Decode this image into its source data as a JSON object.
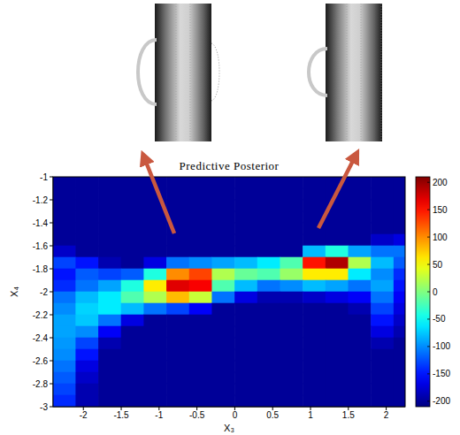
{
  "chart_data": {
    "type": "heatmap",
    "title": "Predictive Posterior",
    "xlabel": "X₃",
    "ylabel": "X₄",
    "xlim": [
      -2.4,
      2.25
    ],
    "xticks": [
      -2,
      -1.5,
      -1,
      -0.5,
      0,
      0.5,
      1,
      1.5,
      2
    ],
    "ylim": [
      -3,
      -1
    ],
    "yticks": [
      -3,
      -2.8,
      -2.6,
      -2.4,
      -2.2,
      -2,
      -1.8,
      -1.6,
      -1.4,
      -1.2,
      -1
    ],
    "cells": {
      "x": [
        -2.25,
        -1.95,
        -1.65,
        -1.35,
        -1.05,
        -0.75,
        -0.45,
        -0.15,
        0.15,
        0.45,
        0.75,
        1.05,
        1.35,
        1.65,
        1.95,
        2.25
      ],
      "y": [
        -1.05,
        -1.15,
        -1.25,
        -1.35,
        -1.45,
        -1.55,
        -1.65,
        -1.75,
        -1.85,
        -1.95,
        -2.05,
        -2.15,
        -2.25,
        -2.35,
        -2.45,
        -2.55,
        -2.65,
        -2.75,
        -2.85,
        -2.95
      ],
      "values": [
        [
          -200,
          -200,
          -200,
          -200,
          -200,
          -200,
          -200,
          -200,
          -200,
          -200,
          -200,
          -200,
          -200,
          -200,
          -200,
          -200
        ],
        [
          -200,
          -200,
          -200,
          -200,
          -200,
          -200,
          -200,
          -200,
          -200,
          -200,
          -200,
          -200,
          -200,
          -200,
          -200,
          -200
        ],
        [
          -200,
          -200,
          -200,
          -200,
          -200,
          -200,
          -200,
          -200,
          -200,
          -200,
          -200,
          -200,
          -200,
          -200,
          -200,
          -200
        ],
        [
          -200,
          -200,
          -200,
          -200,
          -200,
          -200,
          -200,
          -200,
          -200,
          -200,
          -200,
          -200,
          -200,
          -200,
          -200,
          -200
        ],
        [
          -200,
          -200,
          -200,
          -200,
          -200,
          -200,
          -200,
          -200,
          -200,
          -200,
          -200,
          -200,
          -200,
          -200,
          -200,
          -200
        ],
        [
          -200,
          -200,
          -200,
          -200,
          -200,
          -200,
          -200,
          -200,
          -200,
          -200,
          -200,
          -200,
          -200,
          -200,
          -180,
          -170
        ],
        [
          -180,
          -200,
          -200,
          -200,
          -200,
          -200,
          -200,
          -200,
          -200,
          -200,
          -200,
          -80,
          -40,
          -90,
          -110,
          -110
        ],
        [
          -130,
          -150,
          -190,
          -200,
          -170,
          -110,
          -100,
          -90,
          -80,
          -60,
          -20,
          150,
          190,
          20,
          -80,
          -120
        ],
        [
          -150,
          -120,
          -130,
          -120,
          -40,
          100,
          130,
          20,
          -10,
          -20,
          10,
          60,
          60,
          -60,
          -100,
          -140
        ],
        [
          -140,
          -110,
          -90,
          -40,
          60,
          170,
          160,
          -20,
          -80,
          -110,
          -100,
          -80,
          -90,
          -110,
          -90,
          -150
        ],
        [
          -110,
          -80,
          -60,
          -20,
          20,
          80,
          30,
          -110,
          -170,
          -190,
          -190,
          -180,
          -170,
          -160,
          -110,
          -160
        ],
        [
          -100,
          -70,
          -60,
          -80,
          -110,
          -130,
          -160,
          -200,
          -200,
          -200,
          -200,
          -200,
          -200,
          -190,
          -130,
          -170
        ],
        [
          -90,
          -75,
          -110,
          -170,
          -200,
          -200,
          -200,
          -200,
          -200,
          -200,
          -200,
          -200,
          -200,
          -200,
          -150,
          -180
        ],
        [
          -90,
          -100,
          -160,
          -200,
          -200,
          -200,
          -200,
          -200,
          -200,
          -200,
          -200,
          -200,
          -200,
          -200,
          -170,
          -190
        ],
        [
          -95,
          -130,
          -190,
          -200,
          -200,
          -200,
          -200,
          -200,
          -200,
          -200,
          -200,
          -200,
          -200,
          -200,
          -190,
          -200
        ],
        [
          -100,
          -150,
          -200,
          -200,
          -200,
          -200,
          -200,
          -200,
          -200,
          -200,
          -200,
          -200,
          -200,
          -200,
          -200,
          -200
        ],
        [
          -110,
          -170,
          -200,
          -200,
          -200,
          -200,
          -200,
          -200,
          -200,
          -200,
          -200,
          -200,
          -200,
          -200,
          -200,
          -200
        ],
        [
          -120,
          -180,
          -200,
          -200,
          -200,
          -200,
          -200,
          -200,
          -200,
          -200,
          -200,
          -200,
          -200,
          -200,
          -200,
          -200
        ],
        [
          -130,
          -190,
          -200,
          -200,
          -200,
          -200,
          -200,
          -200,
          -200,
          -200,
          -200,
          -200,
          -200,
          -200,
          -200,
          -200
        ],
        [
          -140,
          -190,
          -200,
          -200,
          -200,
          -200,
          -200,
          -200,
          -200,
          -200,
          -200,
          -200,
          -200,
          -200,
          -200,
          -200
        ]
      ]
    },
    "colorbar": {
      "range": [
        -210,
        210
      ],
      "ticks": [
        -200,
        -150,
        -100,
        -50,
        0,
        50,
        100,
        150,
        200
      ]
    }
  }
}
